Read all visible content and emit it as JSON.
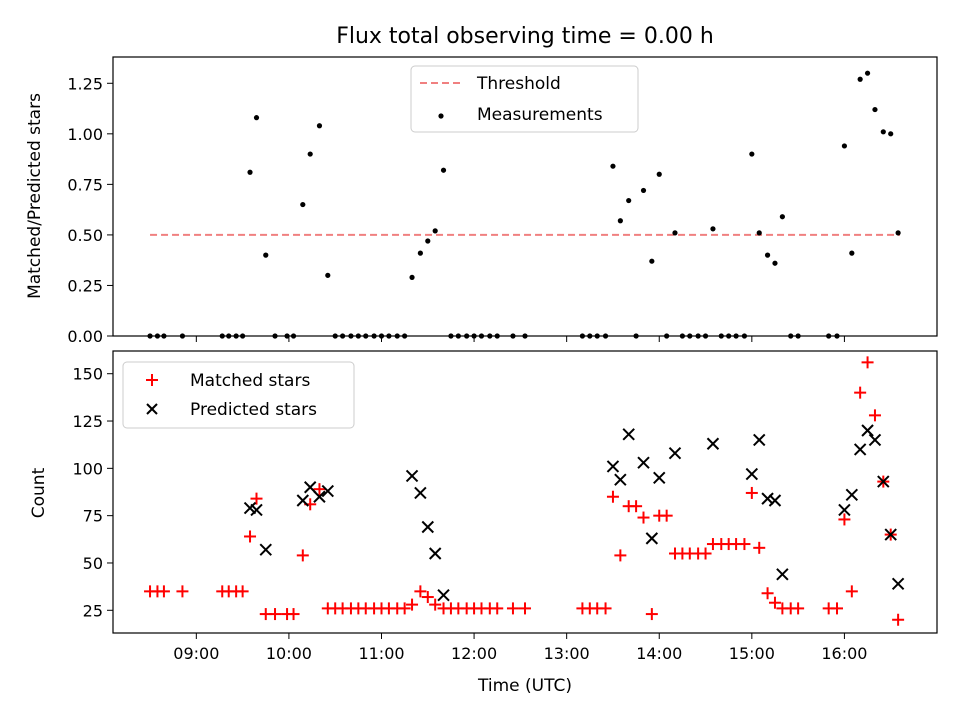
{
  "chart_data": [
    {
      "type": "scatter",
      "title": "Flux total observing time = 0.00 h",
      "xlabel": "",
      "ylabel": "Matched/Predicted stars",
      "xlim": [
        8.1,
        17.0
      ],
      "ylim": [
        0,
        1.38
      ],
      "yticks": [
        0,
        0.25,
        0.5,
        0.75,
        1.0,
        1.25
      ],
      "ytick_labels": [
        "0.00",
        "0.25",
        "0.50",
        "0.75",
        "1.00",
        "1.25"
      ],
      "legend_position": "top-center",
      "threshold": {
        "name": "Threshold",
        "y": 0.5,
        "x_range": [
          8.5,
          16.6
        ],
        "color": "#f08080",
        "style": "dashed"
      },
      "series": [
        {
          "name": "Measurements",
          "color": "#000000",
          "x": [
            8.5,
            8.58,
            8.65,
            8.85,
            9.28,
            9.35,
            9.43,
            9.5,
            9.58,
            9.65,
            9.75,
            9.85,
            9.98,
            10.05,
            10.15,
            10.23,
            10.33,
            10.42,
            10.5,
            10.58,
            10.67,
            10.75,
            10.83,
            10.92,
            11.0,
            11.08,
            11.17,
            11.25,
            11.33,
            11.42,
            11.5,
            11.58,
            11.67,
            11.75,
            11.83,
            11.92,
            12.0,
            12.08,
            12.17,
            12.25,
            12.42,
            12.55,
            13.17,
            13.25,
            13.33,
            13.42,
            13.5,
            13.58,
            13.67,
            13.75,
            13.83,
            13.92,
            14.0,
            14.08,
            14.17,
            14.25,
            14.33,
            14.42,
            14.5,
            14.58,
            14.67,
            14.75,
            14.83,
            14.92,
            15.0,
            15.08,
            15.17,
            15.25,
            15.33,
            15.42,
            15.5,
            15.83,
            15.92,
            16.0,
            16.08,
            16.17,
            16.25,
            16.33,
            16.42,
            16.5,
            16.58
          ],
          "y": [
            0,
            0,
            0,
            0,
            0,
            0,
            0,
            0,
            0.81,
            1.08,
            0.4,
            0,
            0,
            0,
            0.65,
            0.9,
            1.04,
            0.3,
            0,
            0,
            0,
            0,
            0,
            0,
            0,
            0,
            0,
            0,
            0.29,
            0.41,
            0.47,
            0.52,
            0.82,
            0,
            0,
            0,
            0,
            0,
            0,
            0,
            0,
            0,
            0,
            0,
            0,
            0,
            0.84,
            0.57,
            0.67,
            0,
            0.72,
            0.37,
            0.8,
            0,
            0.51,
            0,
            0,
            0,
            0,
            0.53,
            0,
            0,
            0,
            0,
            0.9,
            0.51,
            0.4,
            0.36,
            0.59,
            0,
            0,
            0,
            0,
            0.94,
            0.41,
            1.27,
            1.3,
            1.12,
            1.01,
            1.0,
            0.51
          ]
        }
      ]
    },
    {
      "type": "scatter",
      "title": "",
      "xlabel": "Time (UTC)",
      "ylabel": "Count",
      "xlim": [
        8.1,
        17.0
      ],
      "ylim": [
        13,
        162
      ],
      "xticks": [
        9,
        10,
        11,
        12,
        13,
        14,
        15,
        16
      ],
      "xtick_labels": [
        "09:00",
        "10:00",
        "11:00",
        "12:00",
        "13:00",
        "14:00",
        "15:00",
        "16:00"
      ],
      "yticks": [
        25,
        50,
        75,
        100,
        125,
        150
      ],
      "ytick_labels": [
        "25",
        "50",
        "75",
        "100",
        "125",
        "150"
      ],
      "legend_position": "top-left",
      "series": [
        {
          "name": "Matched stars",
          "marker": "plus",
          "color": "#ff0000",
          "x": [
            8.5,
            8.58,
            8.65,
            8.85,
            9.28,
            9.35,
            9.43,
            9.5,
            9.58,
            9.65,
            9.75,
            9.85,
            9.98,
            10.05,
            10.15,
            10.23,
            10.33,
            10.42,
            10.5,
            10.58,
            10.67,
            10.75,
            10.83,
            10.92,
            11.0,
            11.08,
            11.17,
            11.25,
            11.33,
            11.42,
            11.5,
            11.58,
            11.67,
            11.75,
            11.83,
            11.92,
            12.0,
            12.08,
            12.17,
            12.25,
            12.42,
            12.55,
            13.17,
            13.25,
            13.33,
            13.42,
            13.5,
            13.58,
            13.67,
            13.75,
            13.83,
            13.92,
            14.0,
            14.08,
            14.17,
            14.25,
            14.33,
            14.42,
            14.5,
            14.58,
            14.67,
            14.75,
            14.83,
            14.92,
            15.0,
            15.08,
            15.17,
            15.25,
            15.33,
            15.42,
            15.5,
            15.83,
            15.92,
            16.0,
            16.08,
            16.17,
            16.25,
            16.33,
            16.42,
            16.5,
            16.58
          ],
          "y": [
            35,
            35,
            35,
            35,
            35,
            35,
            35,
            35,
            64,
            84,
            23,
            23,
            23,
            23,
            54,
            81,
            89,
            26,
            26,
            26,
            26,
            26,
            26,
            26,
            26,
            26,
            26,
            26,
            28,
            35,
            32,
            28,
            26,
            26,
            26,
            26,
            26,
            26,
            26,
            26,
            26,
            26,
            26,
            26,
            26,
            26,
            85,
            54,
            80,
            80,
            74,
            23,
            75,
            75,
            55,
            55,
            55,
            55,
            55,
            60,
            60,
            60,
            60,
            60,
            87,
            58,
            34,
            29,
            26,
            26,
            26,
            26,
            26,
            73,
            35,
            140,
            156,
            128,
            93,
            65,
            20
          ]
        },
        {
          "name": "Predicted stars",
          "marker": "x",
          "color": "#000000",
          "x": [
            9.58,
            9.65,
            9.75,
            10.15,
            10.23,
            10.33,
            10.42,
            11.33,
            11.42,
            11.5,
            11.58,
            11.67,
            13.5,
            13.58,
            13.67,
            13.83,
            13.92,
            14.0,
            14.17,
            14.58,
            15.0,
            15.08,
            15.17,
            15.25,
            15.33,
            16.0,
            16.08,
            16.17,
            16.25,
            16.33,
            16.42,
            16.5,
            16.58
          ],
          "y": [
            79,
            78,
            57,
            83,
            90,
            85,
            88,
            96,
            87,
            69,
            55,
            33,
            101,
            94,
            118,
            103,
            63,
            95,
            108,
            113,
            97,
            115,
            84,
            83,
            44,
            78,
            86,
            110,
            120,
            115,
            93,
            65,
            39
          ]
        }
      ]
    }
  ]
}
